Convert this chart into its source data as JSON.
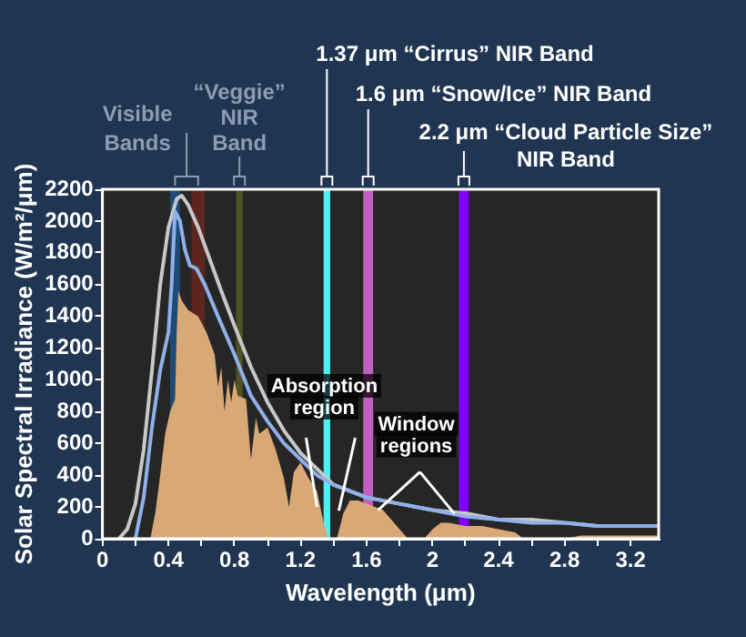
{
  "chart_data": {
    "type": "line",
    "xlabel": "Wavelength (μm)",
    "ylabel": "Solar Spectral Irradiance (W/m²/μm)",
    "xlim": [
      0,
      3.37
    ],
    "ylim": [
      0,
      2200
    ],
    "xticks": [
      0,
      {
        "value": 0.2,
        "label": null
      },
      0.4,
      {
        "value": 0.6,
        "label": null
      },
      0.8,
      {
        "value": 1.0,
        "label": null
      },
      1.2,
      {
        "value": 1.4,
        "label": null
      },
      1.6,
      {
        "value": 1.8,
        "label": null
      },
      2.0,
      {
        "value": 2.2,
        "label": null
      },
      2.4,
      {
        "value": 2.6,
        "label": null
      },
      2.8,
      {
        "value": 3.0,
        "label": null
      },
      3.2
    ],
    "yticks": [
      0,
      200,
      400,
      600,
      800,
      1000,
      1200,
      1400,
      1600,
      1800,
      2000,
      2200
    ],
    "grid": false,
    "legend": false,
    "marker": "none",
    "line_style": "solid",
    "series": [
      {
        "type": "area",
        "color": "#d9a877",
        "x": [
          0.29,
          0.32,
          0.35,
          0.38,
          0.41,
          0.44,
          0.45,
          0.46,
          0.48,
          0.52,
          0.58,
          0.63,
          0.68,
          0.7,
          0.72,
          0.74,
          0.76,
          0.78,
          0.8,
          0.82,
          0.87,
          0.9,
          0.93,
          0.95,
          1.0,
          1.05,
          1.1,
          1.13,
          1.16,
          1.2,
          1.25,
          1.3,
          1.34,
          1.37,
          1.42,
          1.46,
          1.5,
          1.55,
          1.6,
          1.65,
          1.7,
          1.75,
          1.8,
          1.85,
          1.95,
          2.0,
          2.05,
          2.1,
          2.2,
          2.3,
          2.4,
          2.5,
          2.55,
          2.6,
          2.8,
          2.9,
          3.0,
          3.2,
          3.37
        ],
        "values": [
          0,
          160,
          400,
          660,
          800,
          880,
          1300,
          1560,
          1500,
          1440,
          1400,
          1300,
          1160,
          960,
          1080,
          800,
          1000,
          860,
          1000,
          900,
          880,
          500,
          760,
          660,
          700,
          560,
          380,
          200,
          420,
          480,
          380,
          300,
          100,
          0,
          0,
          160,
          240,
          240,
          220,
          200,
          180,
          120,
          60,
          0,
          0,
          60,
          100,
          100,
          80,
          80,
          60,
          40,
          0,
          0,
          0,
          20,
          20,
          20,
          20
        ]
      },
      {
        "color": "#8fb0ea",
        "x": [
          0.2,
          0.25,
          0.3,
          0.35,
          0.4,
          0.42,
          0.44,
          0.47,
          0.5,
          0.53,
          0.57,
          0.62,
          0.7,
          0.8,
          0.9,
          1.0,
          1.1,
          1.2,
          1.3,
          1.4,
          1.5,
          1.6,
          1.8,
          2.0,
          2.2,
          2.4,
          2.6,
          2.8,
          3.0,
          3.2,
          3.37
        ],
        "values": [
          0,
          260,
          700,
          1060,
          1300,
          1620,
          2060,
          2000,
          1820,
          1720,
          1700,
          1600,
          1400,
          1160,
          900,
          740,
          600,
          500,
          400,
          340,
          300,
          260,
          220,
          180,
          140,
          120,
          100,
          100,
          80,
          80,
          80
        ]
      },
      {
        "color": "#c8c8c8",
        "x": [
          0.1,
          0.15,
          0.2,
          0.25,
          0.3,
          0.35,
          0.4,
          0.45,
          0.48,
          0.52,
          0.58,
          0.65,
          0.72,
          0.8,
          0.9,
          1.0,
          1.1,
          1.2,
          1.3,
          1.4,
          1.5,
          1.6,
          1.8,
          2.0,
          2.2,
          2.4,
          2.6,
          2.8,
          3.0,
          3.2,
          3.37
        ],
        "values": [
          0,
          60,
          220,
          560,
          1060,
          1600,
          1960,
          2140,
          2160,
          2100,
          1960,
          1760,
          1560,
          1340,
          1080,
          860,
          680,
          540,
          440,
          340,
          300,
          260,
          220,
          180,
          160,
          120,
          120,
          100,
          80,
          80,
          80
        ]
      }
    ],
    "bands": [
      {
        "axis": "x",
        "from": 0.41,
        "to": 0.47,
        "color": "#1f4a75",
        "label": "Visible Bands"
      },
      {
        "axis": "x",
        "from": 0.54,
        "to": 0.62,
        "color": "#5e2620"
      },
      {
        "axis": "x",
        "from": 0.81,
        "to": 0.85,
        "color": "#4f5222",
        "label": "“Veggie” NIR Band"
      },
      {
        "axis": "x",
        "from": 1.34,
        "to": 1.38,
        "color": "#50f0f0",
        "label": "1.37 μm “Cirrus” NIR Band"
      },
      {
        "axis": "x",
        "from": 1.58,
        "to": 1.64,
        "color": "#c060c0",
        "label": "1.6 μm “Snow/Ice” NIR Band"
      },
      {
        "axis": "x",
        "from": 2.16,
        "to": 2.22,
        "color": "#7f00ff",
        "label": "2.2 μm “Cloud Particle Size” NIR Band"
      }
    ],
    "annotations": [
      {
        "text": "Absorption region",
        "x": 1.3,
        "y": 200
      },
      {
        "text": "Window regions",
        "x": 1.67,
        "y": 180
      }
    ]
  }
}
